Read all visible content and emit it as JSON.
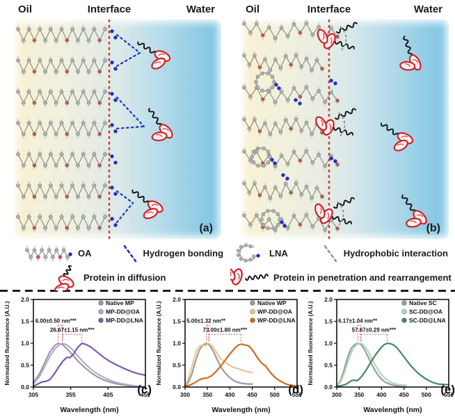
{
  "figure": {
    "panels": [
      {
        "oil": "Oil",
        "interface": "Interface",
        "water": "Water",
        "tag": "(a)"
      },
      {
        "oil": "Oil",
        "interface": "Interface",
        "water": "Water",
        "tag": "(b)"
      }
    ],
    "legend": {
      "items": [
        {
          "icon": "oa-molecule-icon",
          "label": "OA"
        },
        {
          "icon": "hydrogen-bonding-icon",
          "label": "Hydrogen bonding"
        },
        {
          "icon": "protein-diffusion-icon",
          "label": "Protein in diffusion"
        },
        {
          "icon": "lna-molecule-icon",
          "label": "LNA"
        },
        {
          "icon": "hydrophobic-interaction-icon",
          "label": "Hydrophobic interaction"
        },
        {
          "icon": "protein-penetration-icon",
          "label": "Protein in penetration and rearrangement"
        }
      ]
    },
    "colors": {
      "interface_red": "#d93a2b",
      "hbond_blue": "#2030c0",
      "protein_red": "#cf2027",
      "chain_gray": "#9a9a9a",
      "hydrophobic_gray": "#8f8f8f",
      "annotation_red": "#e0544a"
    }
  },
  "chart_data": [
    {
      "type": "line",
      "panel_label": "(c)",
      "xlabel": "Wavelength (nm)",
      "ylabel": "Normalized fluorescence (A.U.)",
      "xlim": [
        305,
        455
      ],
      "ylim": [
        0,
        2.0
      ],
      "xticks": [
        305,
        355,
        405,
        455
      ],
      "yticks": [
        0.0,
        0.5,
        1.0,
        1.5,
        2.0
      ],
      "legend_position": "top-right",
      "series": [
        {
          "name": "Native MP",
          "color": "#9b9b9b",
          "points": [
            [
              305,
              0.1
            ],
            [
              313,
              0.3
            ],
            [
              320,
              0.55
            ],
            [
              327,
              0.8
            ],
            [
              333,
              0.94
            ],
            [
              338,
              1.0
            ],
            [
              344,
              0.97
            ],
            [
              351,
              0.86
            ],
            [
              358,
              0.72
            ],
            [
              366,
              0.57
            ],
            [
              374,
              0.44
            ],
            [
              382,
              0.33
            ],
            [
              390,
              0.24
            ],
            [
              398,
              0.17
            ],
            [
              406,
              0.12
            ],
            [
              415,
              0.08
            ],
            [
              424,
              0.05
            ],
            [
              434,
              0.03
            ],
            [
              444,
              0.01
            ],
            [
              455,
              0.0
            ]
          ]
        },
        {
          "name": "MP-DD@OA",
          "color": "#b5a5d8",
          "points": [
            [
              305,
              0.07
            ],
            [
              313,
              0.24
            ],
            [
              320,
              0.46
            ],
            [
              327,
              0.7
            ],
            [
              334,
              0.88
            ],
            [
              340,
              0.97
            ],
            [
              344,
              1.0
            ],
            [
              350,
              0.96
            ],
            [
              357,
              0.86
            ],
            [
              364,
              0.72
            ],
            [
              372,
              0.57
            ],
            [
              380,
              0.44
            ],
            [
              388,
              0.33
            ],
            [
              396,
              0.25
            ],
            [
              404,
              0.18
            ],
            [
              413,
              0.12
            ],
            [
              422,
              0.08
            ],
            [
              432,
              0.05
            ],
            [
              443,
              0.02
            ],
            [
              455,
              0.0
            ]
          ]
        },
        {
          "name": "MP-DD@LNA",
          "color": "#7e57b5",
          "points": [
            [
              305,
              0.02
            ],
            [
              311,
              0.07
            ],
            [
              317,
              0.12
            ],
            [
              322,
              0.13
            ],
            [
              327,
              0.17
            ],
            [
              333,
              0.3
            ],
            [
              339,
              0.46
            ],
            [
              345,
              0.6
            ],
            [
              350,
              0.68
            ],
            [
              354,
              0.67
            ],
            [
              359,
              0.76
            ],
            [
              364,
              0.9
            ],
            [
              370,
              1.0
            ],
            [
              376,
              0.97
            ],
            [
              383,
              0.9
            ],
            [
              391,
              0.79
            ],
            [
              399,
              0.68
            ],
            [
              408,
              0.58
            ],
            [
              417,
              0.5
            ],
            [
              427,
              0.42
            ],
            [
              437,
              0.35
            ],
            [
              446,
              0.3
            ],
            [
              455,
              0.27
            ]
          ]
        }
      ],
      "annotations": [
        {
          "label": "6.00±0.50 nm***",
          "x1": 338,
          "x2": 344,
          "tx": 333,
          "ty": 1.47
        },
        {
          "label": "26.67±1.15 nm***",
          "x1": 344,
          "x2": 370,
          "tx": 357,
          "ty": 1.26
        }
      ]
    },
    {
      "type": "line",
      "panel_label": "(d)",
      "xlabel": "Wavelength (nm)",
      "ylabel": "Normalized fluorescence (A.U.)",
      "xlim": [
        300,
        550
      ],
      "ylim": [
        0,
        2.0
      ],
      "xticks": [
        300,
        350,
        400,
        450,
        500,
        550
      ],
      "yticks": [
        0.0,
        0.5,
        1.0,
        1.5,
        2.0
      ],
      "legend_position": "top-right",
      "series": [
        {
          "name": "Native WP",
          "color": "#9b9b9b",
          "points": [
            [
              300,
              0.02
            ],
            [
              308,
              0.12
            ],
            [
              316,
              0.32
            ],
            [
              324,
              0.62
            ],
            [
              332,
              0.85
            ],
            [
              340,
              0.96
            ],
            [
              348,
              1.0
            ],
            [
              356,
              0.94
            ],
            [
              364,
              0.8
            ],
            [
              372,
              0.62
            ],
            [
              380,
              0.46
            ],
            [
              388,
              0.34
            ],
            [
              396,
              0.25
            ],
            [
              404,
              0.18
            ],
            [
              412,
              0.13
            ],
            [
              420,
              0.1
            ],
            [
              430,
              0.08
            ],
            [
              440,
              0.07
            ],
            [
              450,
              0.07
            ]
          ]
        },
        {
          "name": "WP-DD@OA",
          "color": "#f2c48d",
          "points": [
            [
              300,
              0.04
            ],
            [
              307,
              0.18
            ],
            [
              314,
              0.42
            ],
            [
              320,
              0.65
            ],
            [
              326,
              0.84
            ],
            [
              332,
              0.93
            ],
            [
              338,
              0.96
            ],
            [
              344,
              0.94
            ],
            [
              349,
              0.97
            ],
            [
              353,
              1.0
            ],
            [
              359,
              0.95
            ],
            [
              366,
              0.86
            ],
            [
              373,
              0.74
            ],
            [
              380,
              0.64
            ],
            [
              386,
              0.6
            ],
            [
              392,
              0.55
            ],
            [
              399,
              0.5
            ],
            [
              406,
              0.46
            ],
            [
              414,
              0.43
            ],
            [
              422,
              0.41
            ],
            [
              430,
              0.38
            ],
            [
              440,
              0.35
            ],
            [
              450,
              0.33
            ]
          ]
        },
        {
          "name": "WP-DD@LNA",
          "color": "#cd6a1f",
          "points": [
            [
              300,
              0.02
            ],
            [
              310,
              0.04
            ],
            [
              320,
              0.09
            ],
            [
              328,
              0.14
            ],
            [
              335,
              0.18
            ],
            [
              342,
              0.2
            ],
            [
              350,
              0.21
            ],
            [
              358,
              0.25
            ],
            [
              366,
              0.32
            ],
            [
              374,
              0.41
            ],
            [
              382,
              0.51
            ],
            [
              390,
              0.62
            ],
            [
              398,
              0.73
            ],
            [
              406,
              0.83
            ],
            [
              414,
              0.92
            ],
            [
              421,
              0.97
            ],
            [
              427,
              0.98
            ],
            [
              433,
              0.96
            ],
            [
              440,
              0.95
            ],
            [
              447,
              0.89
            ],
            [
              454,
              0.79
            ],
            [
              461,
              0.68
            ],
            [
              468,
              0.58
            ],
            [
              474,
              0.52
            ],
            [
              480,
              0.48
            ],
            [
              487,
              0.38
            ],
            [
              494,
              0.29
            ],
            [
              502,
              0.21
            ],
            [
              510,
              0.15
            ],
            [
              519,
              0.1
            ],
            [
              528,
              0.06
            ],
            [
              538,
              0.04
            ],
            [
              550,
              0.02
            ]
          ]
        }
      ],
      "annotations": [
        {
          "label": "5.00±1.32 nm**",
          "x1": 348,
          "x2": 353,
          "tx": 344,
          "ty": 1.47
        },
        {
          "label": "73.00±1.80 nm***",
          "x1": 353,
          "x2": 425,
          "tx": 389,
          "ty": 1.26
        }
      ]
    },
    {
      "type": "line",
      "panel_label": "(e)",
      "xlabel": "Wavelength (nm)",
      "ylabel": "Normalized fluorescence (A.U.)",
      "xlim": [
        300,
        550
      ],
      "ylim": [
        0,
        2.0
      ],
      "xticks": [
        300,
        350,
        400,
        450,
        500,
        550
      ],
      "yticks": [
        0.0,
        0.5,
        1.0,
        1.5,
        2.0
      ],
      "legend_position": "top-right",
      "series": [
        {
          "name": "Native SC",
          "color": "#9b9b9b",
          "points": [
            [
              300,
              0.02
            ],
            [
              308,
              0.14
            ],
            [
              316,
              0.38
            ],
            [
              324,
              0.67
            ],
            [
              332,
              0.88
            ],
            [
              340,
              0.97
            ],
            [
              347,
              1.0
            ],
            [
              354,
              0.97
            ],
            [
              362,
              0.86
            ],
            [
              370,
              0.69
            ],
            [
              378,
              0.52
            ],
            [
              386,
              0.37
            ],
            [
              394,
              0.25
            ],
            [
              402,
              0.16
            ],
            [
              410,
              0.1
            ],
            [
              420,
              0.06
            ],
            [
              432,
              0.03
            ],
            [
              444,
              0.01
            ],
            [
              455,
              0.0
            ]
          ]
        },
        {
          "name": "SC-DD@OA",
          "color": "#a9dab8",
          "points": [
            [
              300,
              0.02
            ],
            [
              309,
              0.12
            ],
            [
              317,
              0.32
            ],
            [
              325,
              0.58
            ],
            [
              333,
              0.8
            ],
            [
              341,
              0.94
            ],
            [
              348,
              0.99
            ],
            [
              354,
              1.0
            ],
            [
              361,
              0.95
            ],
            [
              369,
              0.84
            ],
            [
              377,
              0.68
            ],
            [
              385,
              0.52
            ],
            [
              393,
              0.38
            ],
            [
              401,
              0.27
            ],
            [
              409,
              0.19
            ],
            [
              418,
              0.12
            ],
            [
              428,
              0.08
            ],
            [
              440,
              0.05
            ],
            [
              455,
              0.04
            ]
          ]
        },
        {
          "name": "SC-DD@LNA",
          "color": "#3f8a5e",
          "points": [
            [
              300,
              0.02
            ],
            [
              310,
              0.03
            ],
            [
              320,
              0.06
            ],
            [
              328,
              0.11
            ],
            [
              334,
              0.15
            ],
            [
              339,
              0.16
            ],
            [
              344,
              0.14
            ],
            [
              350,
              0.18
            ],
            [
              357,
              0.26
            ],
            [
              364,
              0.36
            ],
            [
              371,
              0.48
            ],
            [
              378,
              0.6
            ],
            [
              385,
              0.71
            ],
            [
              392,
              0.81
            ],
            [
              399,
              0.9
            ],
            [
              406,
              0.97
            ],
            [
              413,
              1.0
            ],
            [
              420,
              0.99
            ],
            [
              427,
              0.96
            ],
            [
              434,
              0.9
            ],
            [
              442,
              0.8
            ],
            [
              450,
              0.69
            ],
            [
              458,
              0.58
            ],
            [
              466,
              0.48
            ],
            [
              474,
              0.39
            ],
            [
              482,
              0.31
            ],
            [
              490,
              0.25
            ],
            [
              498,
              0.19
            ],
            [
              507,
              0.14
            ],
            [
              516,
              0.1
            ],
            [
              526,
              0.07
            ],
            [
              537,
              0.06
            ],
            [
              550,
              0.05
            ]
          ]
        }
      ],
      "annotations": [
        {
          "label": "6.17±1.04 nm**",
          "x1": 347,
          "x2": 354,
          "tx": 342,
          "ty": 1.47
        },
        {
          "label": "57.67±0.29 nm***",
          "x1": 354,
          "x2": 413,
          "tx": 383,
          "ty": 1.26
        }
      ]
    }
  ]
}
